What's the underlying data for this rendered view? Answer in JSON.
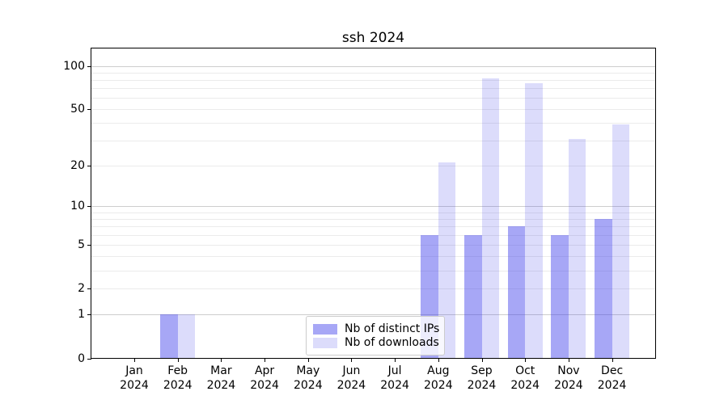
{
  "title": "ssh 2024",
  "chart_data": {
    "type": "bar",
    "title": "ssh 2024",
    "categories": [
      "Jan",
      "Feb",
      "Mar",
      "Apr",
      "May",
      "Jun",
      "Jul",
      "Aug",
      "Sep",
      "Oct",
      "Nov",
      "Dec"
    ],
    "year": "2024",
    "series": [
      {
        "key": "distinct-ips",
        "name": "Nb of distinct IPs",
        "color": "rgba(60,60,235,0.45)",
        "color_hex": "#a7a7f3",
        "values": [
          0,
          1,
          0,
          0,
          0,
          0,
          0,
          6,
          6,
          7,
          6,
          8
        ]
      },
      {
        "key": "downloads",
        "name": "Nb of downloads",
        "color": "rgba(60,60,235,0.18)",
        "color_hex": "#dcdcfa",
        "values": [
          0,
          1,
          0,
          0,
          0,
          0,
          0,
          21,
          82,
          76,
          31,
          39
        ]
      }
    ],
    "yscale": "log1p",
    "ylim": [
      0,
      131
    ],
    "yticks": [
      0,
      1,
      2,
      5,
      10,
      20,
      50,
      100
    ],
    "gridlines_major": [
      1,
      10,
      100
    ],
    "gridlines_minor": [
      2,
      3,
      4,
      5,
      6,
      7,
      8,
      9,
      20,
      30,
      40,
      50,
      60,
      70,
      80,
      90
    ],
    "grid": "horizontal",
    "legend_position": "lower-center"
  },
  "colors": {
    "background": "#ffffff",
    "spine": "#000000",
    "grid_major": "#cdcdcd",
    "grid_minor": "#ebebeb"
  }
}
